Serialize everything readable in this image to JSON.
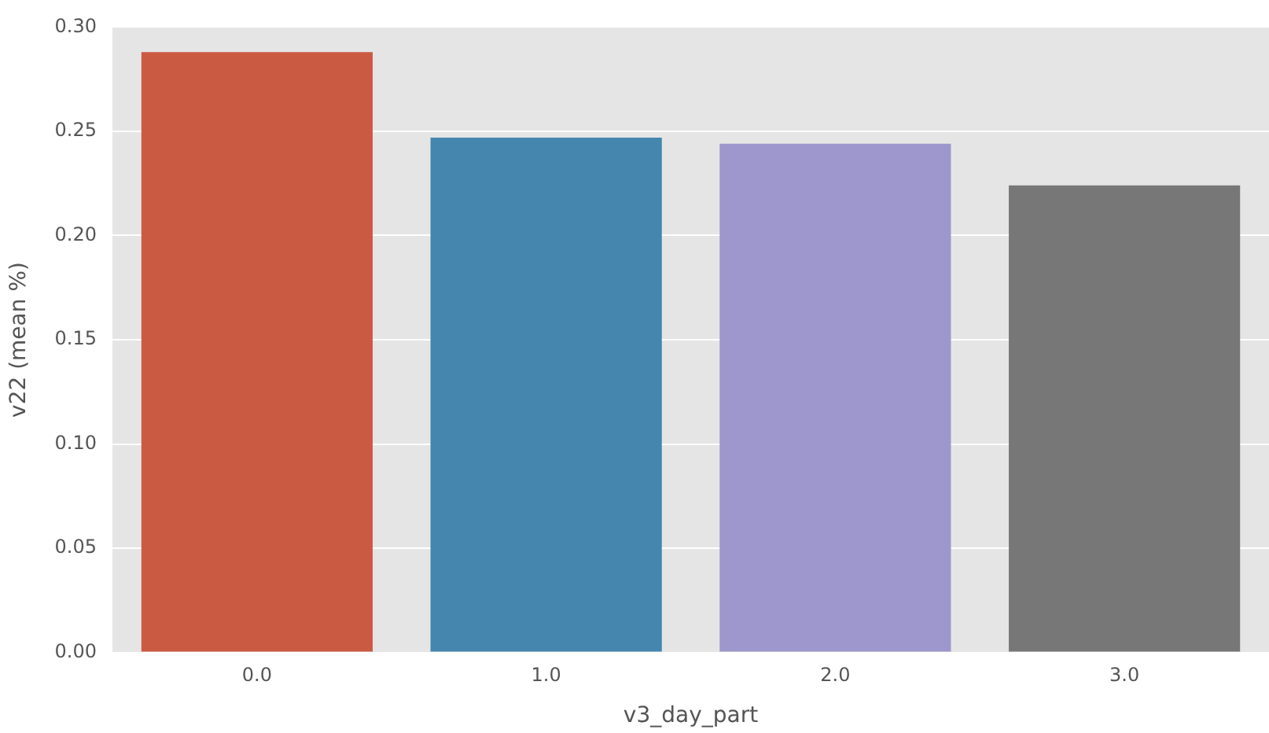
{
  "chart_data": {
    "type": "bar",
    "xlabel": "v3_day_part",
    "ylabel": "v22 (mean %)",
    "categories": [
      "0.0",
      "1.0",
      "2.0",
      "3.0"
    ],
    "values": [
      0.288,
      0.247,
      0.244,
      0.224
    ],
    "colors": [
      "#cb5a43",
      "#4486ad",
      "#9d97cd",
      "#777777"
    ],
    "ylim": [
      0,
      0.3
    ],
    "yticks": [
      {
        "value": 0,
        "label": "0.00"
      },
      {
        "value": 0.05,
        "label": "0.05"
      },
      {
        "value": 0.1,
        "label": "0.10"
      },
      {
        "value": 0.15,
        "label": "0.15"
      },
      {
        "value": 0.2,
        "label": "0.20"
      },
      {
        "value": 0.25,
        "label": "0.25"
      },
      {
        "value": 0.3,
        "label": "0.30"
      }
    ],
    "grid": "y"
  }
}
